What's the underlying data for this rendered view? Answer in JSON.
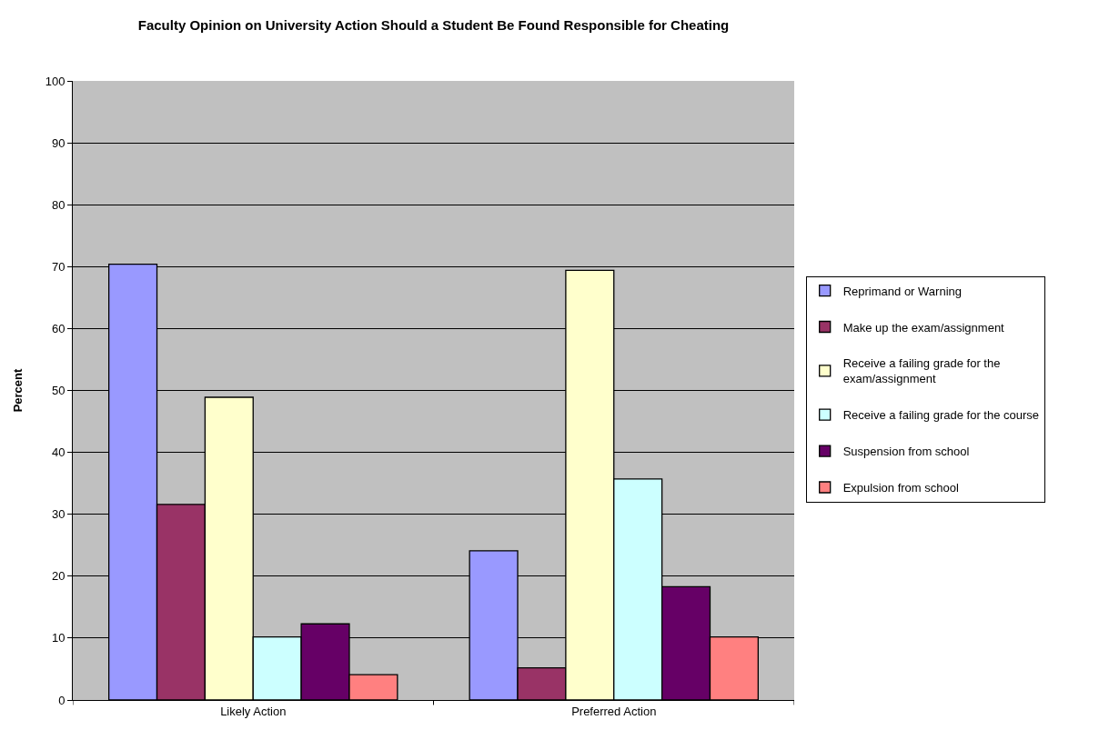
{
  "chart_data": {
    "type": "bar",
    "title": "Faculty Opinion on University Action Should a Student Be Found Responsible for Cheating",
    "ylabel": "Percent",
    "categories": [
      "Likely Action",
      "Preferred Action"
    ],
    "series": [
      {
        "name": "Reprimand or Warning",
        "color": "#9999ff",
        "values": [
          70.4,
          24.1
        ]
      },
      {
        "name": "Make up the exam/assignment",
        "color": "#993366",
        "values": [
          31.6,
          5.2
        ]
      },
      {
        "name": "Receive a failing grade for the exam/assignment",
        "color": "#ffffcc",
        "values": [
          48.9,
          69.4
        ]
      },
      {
        "name": "Receive a failing grade for the course",
        "color": "#ccffff",
        "values": [
          10.2,
          35.7
        ]
      },
      {
        "name": "Suspension from school",
        "color": "#660066",
        "values": [
          12.3,
          18.3
        ]
      },
      {
        "name": "Expulsion from school",
        "color": "#ff8080",
        "values": [
          4.1,
          10.2
        ]
      }
    ],
    "ylim": [
      0,
      100
    ],
    "yticks": [
      0,
      10,
      20,
      30,
      40,
      50,
      60,
      70,
      80,
      90,
      100
    ],
    "grid": "y",
    "legend": "right"
  }
}
